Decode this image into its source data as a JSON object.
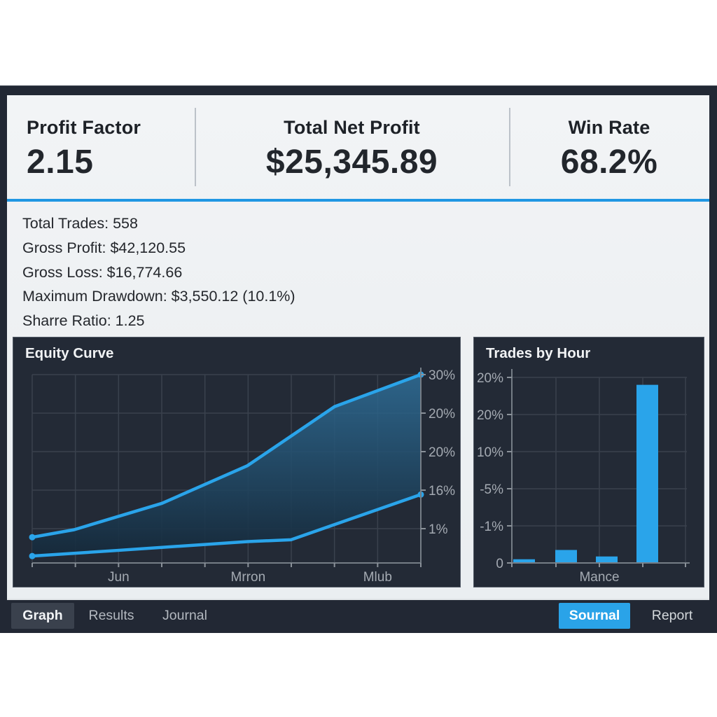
{
  "header": {
    "stats": [
      {
        "label": "Profit Factor",
        "value": "2.15"
      },
      {
        "label": "Total Net Profit",
        "value": "$25,345.89"
      },
      {
        "label": "Win Rate",
        "value": "68.2%"
      }
    ]
  },
  "summary": {
    "lines": [
      "Total Trades: 558",
      "Gross Profit: $42,120.55",
      "Gross Loss: $16,774.66",
      "Maximum Drawdown: $3,550.12 (10.1%)",
      "Sharre Ratio: 1.25"
    ]
  },
  "tabs": {
    "graph": "Graph",
    "results": "Results",
    "journal": "Journal",
    "sournal": "Sournal",
    "report": "Report"
  },
  "colors": {
    "accent_blue": "#2aa3e8",
    "divider_blue": "#2097e3",
    "panel_dark": "#232a36",
    "window_dark": "#222834",
    "content_light": "#eef1f3"
  },
  "chart_data": [
    {
      "type": "area",
      "title": "Equity Curve",
      "y_axis_side": "right",
      "ymax": 30,
      "grid": true,
      "y_tick_labels": [
        "30%",
        "20%",
        "20%",
        "16%",
        "1%"
      ],
      "x_tick_labels": [
        "Jun",
        "Mrron",
        "Mlub"
      ],
      "series": [
        {
          "name": "upper-equity-line",
          "points": [
            [
              0,
              4.1
            ],
            [
              0.108,
              5.3
            ],
            [
              0.334,
              9.5
            ],
            [
              0.554,
              15.5
            ],
            [
              0.778,
              24.9
            ],
            [
              1,
              30
            ]
          ]
        },
        {
          "name": "lower-equity-line",
          "points": [
            [
              0,
              1.1
            ],
            [
              0.22,
              2.0
            ],
            [
              0.554,
              3.4
            ],
            [
              0.666,
              3.7
            ],
            [
              1,
              10.9
            ]
          ]
        }
      ]
    },
    {
      "type": "bar",
      "title": "Trades by Hour",
      "y_axis_side": "left",
      "ymax": 20,
      "grid": true,
      "y_tick_labels": [
        "20%",
        "20%",
        "10%",
        "-5%",
        "-1%",
        "0"
      ],
      "x_tick_labels": [
        "Mance"
      ],
      "categories": [
        "",
        "",
        "",
        ""
      ],
      "values": [
        0.4,
        1.4,
        0.7,
        19.2
      ]
    }
  ]
}
